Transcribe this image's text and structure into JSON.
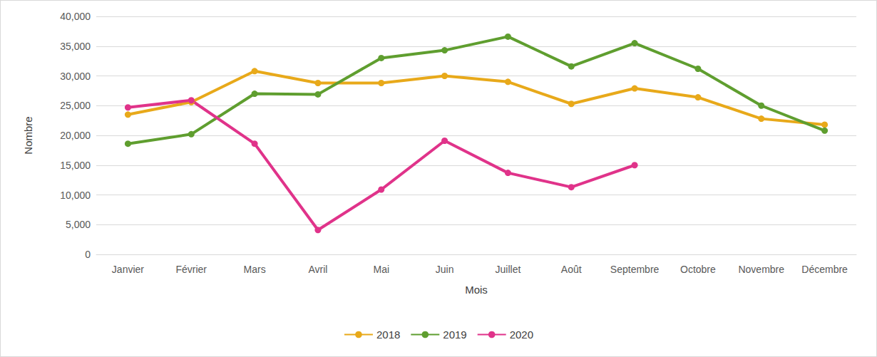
{
  "chart_data": {
    "type": "line",
    "x_label": "Mois",
    "y_label": "Nombre",
    "categories": [
      "Janvier",
      "Février",
      "Mars",
      "Avril",
      "Mai",
      "Juin",
      "Juillet",
      "Août",
      "Septembre",
      "Octobre",
      "Novembre",
      "Décembre"
    ],
    "series": [
      {
        "name": "2018",
        "color": "#E8A91A",
        "values": [
          23500,
          25600,
          30800,
          28800,
          28800,
          30000,
          29000,
          25300,
          27900,
          26400,
          22800,
          21800
        ]
      },
      {
        "name": "2019",
        "color": "#5F9E2F",
        "values": [
          18600,
          20200,
          27000,
          26900,
          33000,
          34300,
          36600,
          31600,
          35500,
          31200,
          25000,
          20800
        ]
      },
      {
        "name": "2020",
        "color": "#E0338A",
        "values": [
          24700,
          25900,
          18600,
          4100,
          10900,
          19100,
          13700,
          11300,
          15000,
          null,
          null,
          null
        ]
      }
    ],
    "ylim": [
      0,
      40000
    ],
    "yticks": [
      0,
      {
        "value": 5000,
        "label": "5,000"
      },
      {
        "value": 10000,
        "label": "10,000"
      },
      {
        "value": 15000,
        "label": "15,000"
      },
      {
        "value": 20000,
        "label": "20,000"
      },
      {
        "value": 25000,
        "label": "25,000"
      },
      {
        "value": 30000,
        "label": "30,000"
      },
      {
        "value": 35000,
        "label": "35,000"
      },
      {
        "value": 40000,
        "label": "40,000"
      }
    ],
    "grid": true,
    "legend": "bottom",
    "marker": "circle"
  }
}
